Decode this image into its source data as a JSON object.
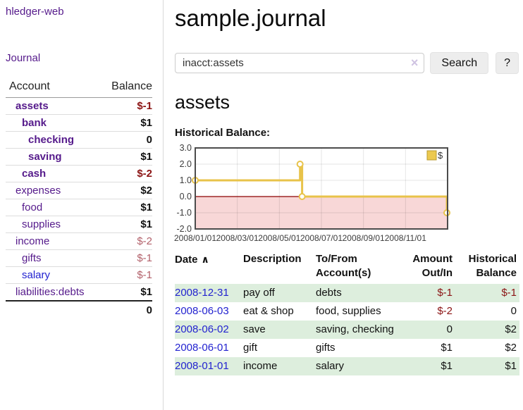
{
  "app": {
    "brand": "hledger-web"
  },
  "sidebar": {
    "nav": {
      "journal_label": "Journal"
    },
    "accounts_table": {
      "headers": {
        "account": "Account",
        "balance": "Balance"
      },
      "rows": [
        {
          "name": "assets",
          "indent": 0,
          "bold": true,
          "link": "purple",
          "balance": "$-1",
          "style": "negb"
        },
        {
          "name": "bank",
          "indent": 1,
          "bold": true,
          "link": "purple",
          "balance": "$1",
          "style": ""
        },
        {
          "name": "checking",
          "indent": 2,
          "bold": true,
          "link": "purple",
          "balance": "0",
          "style": ""
        },
        {
          "name": "saving",
          "indent": 2,
          "bold": true,
          "link": "purple",
          "balance": "$1",
          "style": ""
        },
        {
          "name": "cash",
          "indent": 1,
          "bold": true,
          "link": "purple",
          "balance": "$-2",
          "style": "negb"
        },
        {
          "name": "expenses",
          "indent": 0,
          "bold": false,
          "link": "purple",
          "balance": "$2",
          "style": ""
        },
        {
          "name": "food",
          "indent": 1,
          "bold": false,
          "link": "purple",
          "balance": "$1",
          "style": ""
        },
        {
          "name": "supplies",
          "indent": 1,
          "bold": false,
          "link": "purple",
          "balance": "$1",
          "style": ""
        },
        {
          "name": "income",
          "indent": 0,
          "bold": false,
          "link": "purple",
          "balance": "$-2",
          "style": "dim"
        },
        {
          "name": "gifts",
          "indent": 1,
          "bold": false,
          "link": "purple",
          "balance": "$-1",
          "style": "dim"
        },
        {
          "name": "salary",
          "indent": 1,
          "bold": false,
          "link": "blue",
          "balance": "$-1",
          "style": "dim"
        },
        {
          "name": "liabilities:debts",
          "indent": 0,
          "bold": false,
          "link": "purple",
          "balance": "$1",
          "style": ""
        }
      ],
      "total": "0"
    }
  },
  "main": {
    "title": "sample.journal",
    "search": {
      "value": "inacct:assets",
      "clear_icon": "×",
      "button_label": "Search",
      "help_label": "?"
    },
    "account_heading": "assets",
    "chart_heading": "Historical Balance:"
  },
  "chart_data": {
    "type": "line",
    "step": true,
    "title": "Historical Balance",
    "series": [
      {
        "name": "$",
        "points": [
          {
            "date": "2008/01/01",
            "x": 0.0,
            "y": 1
          },
          {
            "date": "2008/06/01",
            "x": 0.4153,
            "y": 2
          },
          {
            "date": "2008/06/03",
            "x": 0.4235,
            "y": 0
          },
          {
            "date": "2008/12/31",
            "x": 0.9973,
            "y": -1
          }
        ]
      }
    ],
    "ylim": [
      -2,
      3
    ],
    "yticks": [
      {
        "v": 3,
        "label": "3.0"
      },
      {
        "v": 2,
        "label": "2.0"
      },
      {
        "v": 1,
        "label": "1.0"
      },
      {
        "v": 0,
        "label": "0.0"
      },
      {
        "v": -1,
        "label": "-1.0"
      },
      {
        "v": -2,
        "label": "-2.0"
      }
    ],
    "xticks": [
      {
        "x": 0.0,
        "label": "2008/01/01"
      },
      {
        "x": 0.16667,
        "label": "2008/03/01"
      },
      {
        "x": 0.33333,
        "label": "2008/05/01"
      },
      {
        "x": 0.5,
        "label": "2008/07/01"
      },
      {
        "x": 0.66667,
        "label": "2008/09/01"
      },
      {
        "x": 0.83333,
        "label": "2008/11/01"
      }
    ],
    "legend": {
      "label": "$",
      "position": "top-right"
    },
    "grid": true,
    "negative_region": true,
    "colors": {
      "line": "#e8c34a",
      "marker_fill": "#ffffff",
      "legend_fill": "#ecc94f",
      "legend_border": "#b89b30",
      "zero_line": "#8b0000",
      "negative_fill": "#f8d7d7",
      "plot_border": "#4c4c4c",
      "tick_text": "#3c3c3c"
    }
  },
  "register_table": {
    "columns": [
      {
        "label": "Date"
      },
      {
        "label": "Description"
      },
      {
        "label": "To/From Account(s)"
      },
      {
        "label": "Amount Out/In"
      },
      {
        "label": "Historical Balance"
      }
    ],
    "sort_icon": "∧",
    "rows": [
      {
        "date": "2008-12-31",
        "description": "pay off",
        "accounts": "debts",
        "amount": "$-1",
        "amount_neg": true,
        "balance": "$-1",
        "balance_neg": true
      },
      {
        "date": "2008-06-03",
        "description": "eat & shop",
        "accounts": "food, supplies",
        "amount": "$-2",
        "amount_neg": true,
        "balance": "0",
        "balance_neg": false
      },
      {
        "date": "2008-06-02",
        "description": "save",
        "accounts": "saving, checking",
        "amount": "0",
        "amount_neg": false,
        "balance": "$2",
        "balance_neg": false
      },
      {
        "date": "2008-06-01",
        "description": "gift",
        "accounts": "gifts",
        "amount": "$1",
        "amount_neg": false,
        "balance": "$2",
        "balance_neg": false
      },
      {
        "date": "2008-01-01",
        "description": "income",
        "accounts": "salary",
        "amount": "$1",
        "amount_neg": false,
        "balance": "$1",
        "balance_neg": false
      }
    ]
  }
}
